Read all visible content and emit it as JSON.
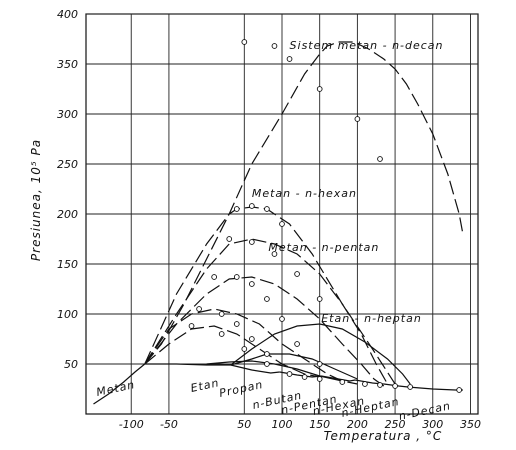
{
  "chart_data": {
    "type": "line",
    "xlabel": "Temperatura , °C",
    "ylabel": "Presiunea, 10⁵ Pa",
    "xlim": [
      -160,
      360
    ],
    "ylim": [
      0,
      400
    ],
    "xticks": [
      -100,
      -50,
      50,
      100,
      150,
      200,
      250,
      300,
      350
    ],
    "yticks": [
      50,
      100,
      150,
      200,
      250,
      300,
      350,
      400
    ],
    "grid": true,
    "annotations": [
      {
        "text": "Sistem  metan - n-decan",
        "x": 110,
        "y": 365
      },
      {
        "text": "Metan - n-hexan",
        "x": 60,
        "y": 217
      },
      {
        "text": "Metan - n-pentan",
        "x": 82,
        "y": 163
      },
      {
        "text": "Etan - n-heptan",
        "x": 152,
        "y": 92
      }
    ],
    "pure_components": [
      {
        "name": "Metan",
        "x": -145,
        "y": 18
      },
      {
        "name": "Etan",
        "x": -20,
        "y": 22
      },
      {
        "name": "Propan",
        "x": 18,
        "y": 17
      },
      {
        "name": "n-Butan",
        "x": 62,
        "y": 5
      },
      {
        "name": "n-Pentan",
        "x": 100,
        "y": 0
      },
      {
        "name": "n-Hexan",
        "x": 142,
        "y": -1
      },
      {
        "name": "n-Heptan",
        "x": 180,
        "y": -3
      },
      {
        "name": "n-Decan",
        "x": 256,
        "y": -6
      }
    ],
    "metan_curve": {
      "x": [
        -150,
        -130,
        -110,
        -95,
        -82
      ],
      "y": [
        10,
        20,
        32,
        42,
        50
      ]
    },
    "vapor_pressure_curves": [
      {
        "x": [
          -82,
          -40,
          0,
          32
        ],
        "y": [
          50,
          50,
          49,
          49
        ]
      },
      {
        "x": [
          32,
          60,
          85,
          97
        ],
        "y": [
          49,
          44,
          41,
          42
        ]
      },
      {
        "x": [
          97,
          120,
          140,
          152
        ],
        "y": [
          42,
          39,
          37,
          38
        ]
      },
      {
        "x": [
          152,
          175,
          190,
          197
        ],
        "y": [
          38,
          35,
          33,
          34
        ]
      },
      {
        "x": [
          197,
          220,
          235,
          235
        ],
        "y": [
          34,
          31,
          30,
          30
        ]
      },
      {
        "x": [
          235,
          255,
          267
        ],
        "y": [
          30,
          28,
          27
        ]
      },
      {
        "x": [
          267,
          300,
          330,
          340
        ],
        "y": [
          27,
          25,
          24,
          24
        ]
      }
    ],
    "series": [
      {
        "solid": {
          "x": [
            -82,
            -60,
            -30,
            0,
            30,
            60,
            100,
            130,
            150,
            160,
            175,
            195,
            215,
            235,
            250,
            265,
            280,
            300,
            320,
            335,
            340
          ],
          "y": [
            50,
            70,
            110,
            155,
            200,
            250,
            300,
            340,
            360,
            368,
            372,
            372,
            365,
            355,
            345,
            330,
            310,
            280,
            240,
            200,
            180
          ]
        }
      },
      {
        "solid": {
          "x": [
            -82,
            -40,
            0,
            30,
            40,
            60,
            80,
            110,
            140,
            180,
            220,
            250
          ],
          "y": [
            50,
            120,
            170,
            200,
            205,
            207,
            205,
            190,
            160,
            110,
            65,
            30
          ]
        }
      },
      {
        "solid": {
          "x": [
            -82,
            -40,
            0,
            30,
            60,
            90,
            120,
            150,
            180,
            205,
            225,
            240
          ],
          "y": [
            50,
            100,
            145,
            170,
            175,
            170,
            160,
            140,
            110,
            80,
            50,
            30
          ]
        }
      },
      {
        "solid": {
          "x": [
            -82,
            -40,
            0,
            30,
            60,
            90,
            120,
            150,
            180,
            205,
            222,
            235
          ],
          "y": [
            50,
            90,
            120,
            135,
            137,
            130,
            115,
            95,
            70,
            50,
            35,
            28
          ]
        }
      },
      {
        "solid": {
          "x": [
            -82,
            -50,
            -20,
            10,
            40,
            70,
            100,
            130,
            160,
            180,
            200
          ],
          "y": [
            50,
            85,
            100,
            105,
            100,
            90,
            70,
            55,
            40,
            33,
            30
          ]
        }
      },
      {
        "solid": {
          "x": [
            -82,
            -50,
            -20,
            10,
            40,
            70,
            100,
            130,
            150
          ],
          "y": [
            50,
            70,
            85,
            88,
            80,
            65,
            50,
            40,
            37
          ]
        }
      },
      {
        "solid": {
          "x": [
            32,
            60,
            90,
            120,
            150,
            180,
            210,
            240,
            260,
            270
          ],
          "y": [
            49,
            65,
            80,
            88,
            90,
            85,
            72,
            55,
            40,
            30
          ]
        }
      },
      {
        "solid": {
          "x": [
            32,
            60,
            80,
            110,
            140,
            170,
            200
          ],
          "y": [
            49,
            55,
            60,
            60,
            55,
            45,
            35
          ]
        }
      },
      {
        "solid": {
          "x": [
            0,
            30,
            60,
            90,
            120,
            150,
            180
          ],
          "y": [
            50,
            52,
            53,
            50,
            45,
            38,
            33
          ]
        }
      }
    ],
    "points": {
      "x": [
        50,
        90,
        110,
        150,
        200,
        230,
        40,
        60,
        80,
        100,
        30,
        60,
        90,
        120,
        150,
        10,
        40,
        60,
        80,
        100,
        120,
        150,
        -10,
        20,
        40,
        60,
        80,
        -20,
        20,
        50,
        80,
        110,
        130,
        150,
        180,
        210,
        230,
        250,
        270,
        335
      ],
      "y": [
        372,
        368,
        355,
        325,
        295,
        255,
        205,
        208,
        205,
        190,
        175,
        172,
        160,
        140,
        115,
        137,
        137,
        130,
        115,
        95,
        70,
        50,
        105,
        100,
        90,
        75,
        60,
        88,
        80,
        65,
        50,
        40,
        37,
        35,
        32,
        30,
        29,
        28,
        27,
        24
      ]
    }
  }
}
